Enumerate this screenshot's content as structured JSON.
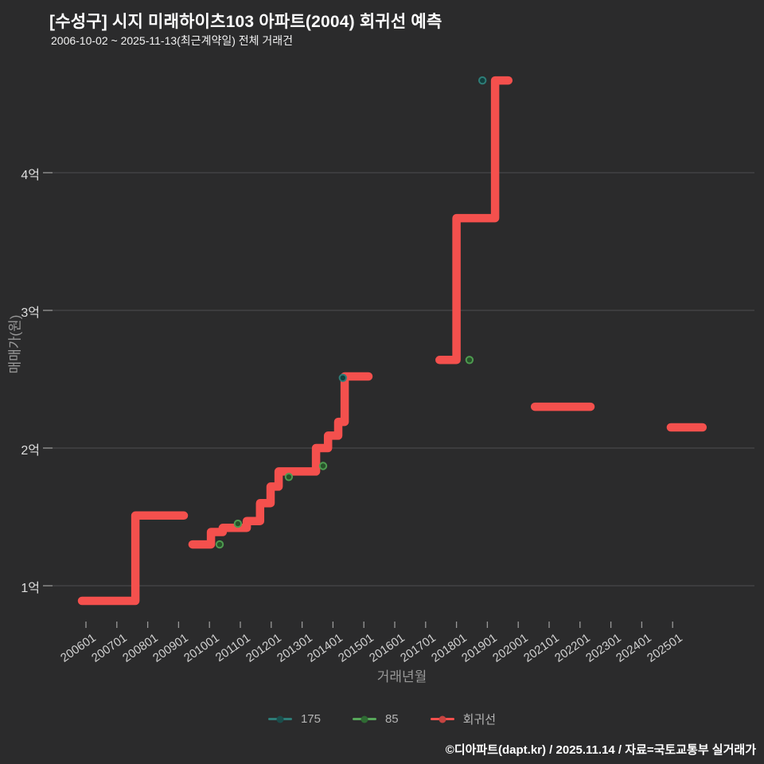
{
  "header": {
    "title": "[수성구] 시지 미래하이츠103 아파트(2004) 회귀선 예측",
    "subtitle": "2006-10-02 ~ 2025-11-13(최근계약일) 전체 거래건"
  },
  "footer": {
    "credit": "©디아파트(dapt.kr) / 2025.11.14 / 자료=국토교통부 실거래가"
  },
  "colors": {
    "background": "#2B2B2C",
    "gridline": "#4D4D4F",
    "tick": "#999999",
    "series_175": "#2E7D78",
    "series_85": "#4E9B50",
    "regression": "#F4504D"
  },
  "chart_data": {
    "type": "line",
    "title": "[수성구] 시지 미래하이츠103 아파트(2004) 회귀선 예측",
    "subtitle": "2006-10-02 ~ 2025-11-13(최근계약일) 전체 거래건",
    "xlabel": "거래년월",
    "ylabel": "매매가(원)",
    "unit": "억원",
    "grid": "horizontal",
    "legend_position": "bottom",
    "xlim": [
      2004.8,
      2026.8
    ],
    "ylim": [
      0.75,
      4.85
    ],
    "x_ticks": [
      {
        "label": "200601",
        "year": 2006
      },
      {
        "label": "200701",
        "year": 2007
      },
      {
        "label": "200801",
        "year": 2008
      },
      {
        "label": "200901",
        "year": 2009
      },
      {
        "label": "201001",
        "year": 2010
      },
      {
        "label": "201101",
        "year": 2011
      },
      {
        "label": "201201",
        "year": 2012
      },
      {
        "label": "201301",
        "year": 2013
      },
      {
        "label": "201401",
        "year": 2014
      },
      {
        "label": "201501",
        "year": 2015
      },
      {
        "label": "201601",
        "year": 2016
      },
      {
        "label": "201701",
        "year": 2017
      },
      {
        "label": "201801",
        "year": 2018
      },
      {
        "label": "201901",
        "year": 2019
      },
      {
        "label": "202001",
        "year": 2020
      },
      {
        "label": "202101",
        "year": 2021
      },
      {
        "label": "202201",
        "year": 2022
      },
      {
        "label": "202301",
        "year": 2023
      },
      {
        "label": "202401",
        "year": 2024
      },
      {
        "label": "202501",
        "year": 2025
      }
    ],
    "y_ticks": [
      {
        "label": "1억",
        "value": 1
      },
      {
        "label": "2억",
        "value": 2
      },
      {
        "label": "3억",
        "value": 3
      },
      {
        "label": "4억",
        "value": 4
      }
    ],
    "legend": [
      {
        "label": "175",
        "line": "#2E7D78",
        "dot": "#1A4E4C"
      },
      {
        "label": "85",
        "line": "#57A75A",
        "dot": "#2F6B33"
      },
      {
        "label": "회귀선",
        "line": "#F4504D",
        "dot": "#C64441"
      }
    ],
    "series": [
      {
        "name": "회귀선",
        "type": "step-line",
        "color": "#F4504D",
        "stroke_width": 10.5,
        "polylines": [
          [
            [
              2005.87,
              0.89
            ],
            [
              2007.6,
              0.89
            ],
            [
              2007.6,
              1.51
            ],
            [
              2009.17,
              1.51
            ]
          ],
          [
            [
              2009.45,
              1.3
            ],
            [
              2010.05,
              1.3
            ],
            [
              2010.05,
              1.39
            ],
            [
              2010.43,
              1.39
            ],
            [
              2010.43,
              1.42
            ],
            [
              2011.21,
              1.42
            ],
            [
              2011.21,
              1.47
            ],
            [
              2011.64,
              1.47
            ],
            [
              2011.64,
              1.6
            ],
            [
              2011.98,
              1.6
            ],
            [
              2011.98,
              1.72
            ],
            [
              2012.24,
              1.72
            ],
            [
              2012.24,
              1.83
            ],
            [
              2013.45,
              1.83
            ],
            [
              2013.45,
              2.0
            ],
            [
              2013.84,
              2.0
            ],
            [
              2013.84,
              2.09
            ],
            [
              2014.17,
              2.09
            ],
            [
              2014.17,
              2.19
            ],
            [
              2014.38,
              2.19
            ],
            [
              2014.38,
              2.52
            ],
            [
              2015.15,
              2.52
            ]
          ],
          [
            [
              2017.45,
              2.64
            ],
            [
              2018.0,
              2.64
            ],
            [
              2018.0,
              3.67
            ],
            [
              2019.25,
              3.67
            ],
            [
              2019.25,
              4.67
            ],
            [
              2019.68,
              4.67
            ]
          ],
          [
            [
              2020.54,
              2.3
            ],
            [
              2022.34,
              2.3
            ]
          ],
          [
            [
              2024.94,
              2.15
            ],
            [
              2025.97,
              2.15
            ]
          ]
        ]
      },
      {
        "name": "175",
        "type": "scatter",
        "color": "#2E7D78",
        "fill": "#123F3D",
        "points": [
          [
            2014.32,
            2.51
          ],
          [
            2018.84,
            4.67
          ]
        ]
      },
      {
        "name": "85",
        "type": "scatter",
        "color": "#4E9B50",
        "fill": "#27522A",
        "points": [
          [
            2010.33,
            1.3
          ],
          [
            2010.92,
            1.45
          ],
          [
            2012.57,
            1.79
          ],
          [
            2013.68,
            1.87
          ],
          [
            2018.42,
            2.64
          ]
        ]
      }
    ]
  }
}
